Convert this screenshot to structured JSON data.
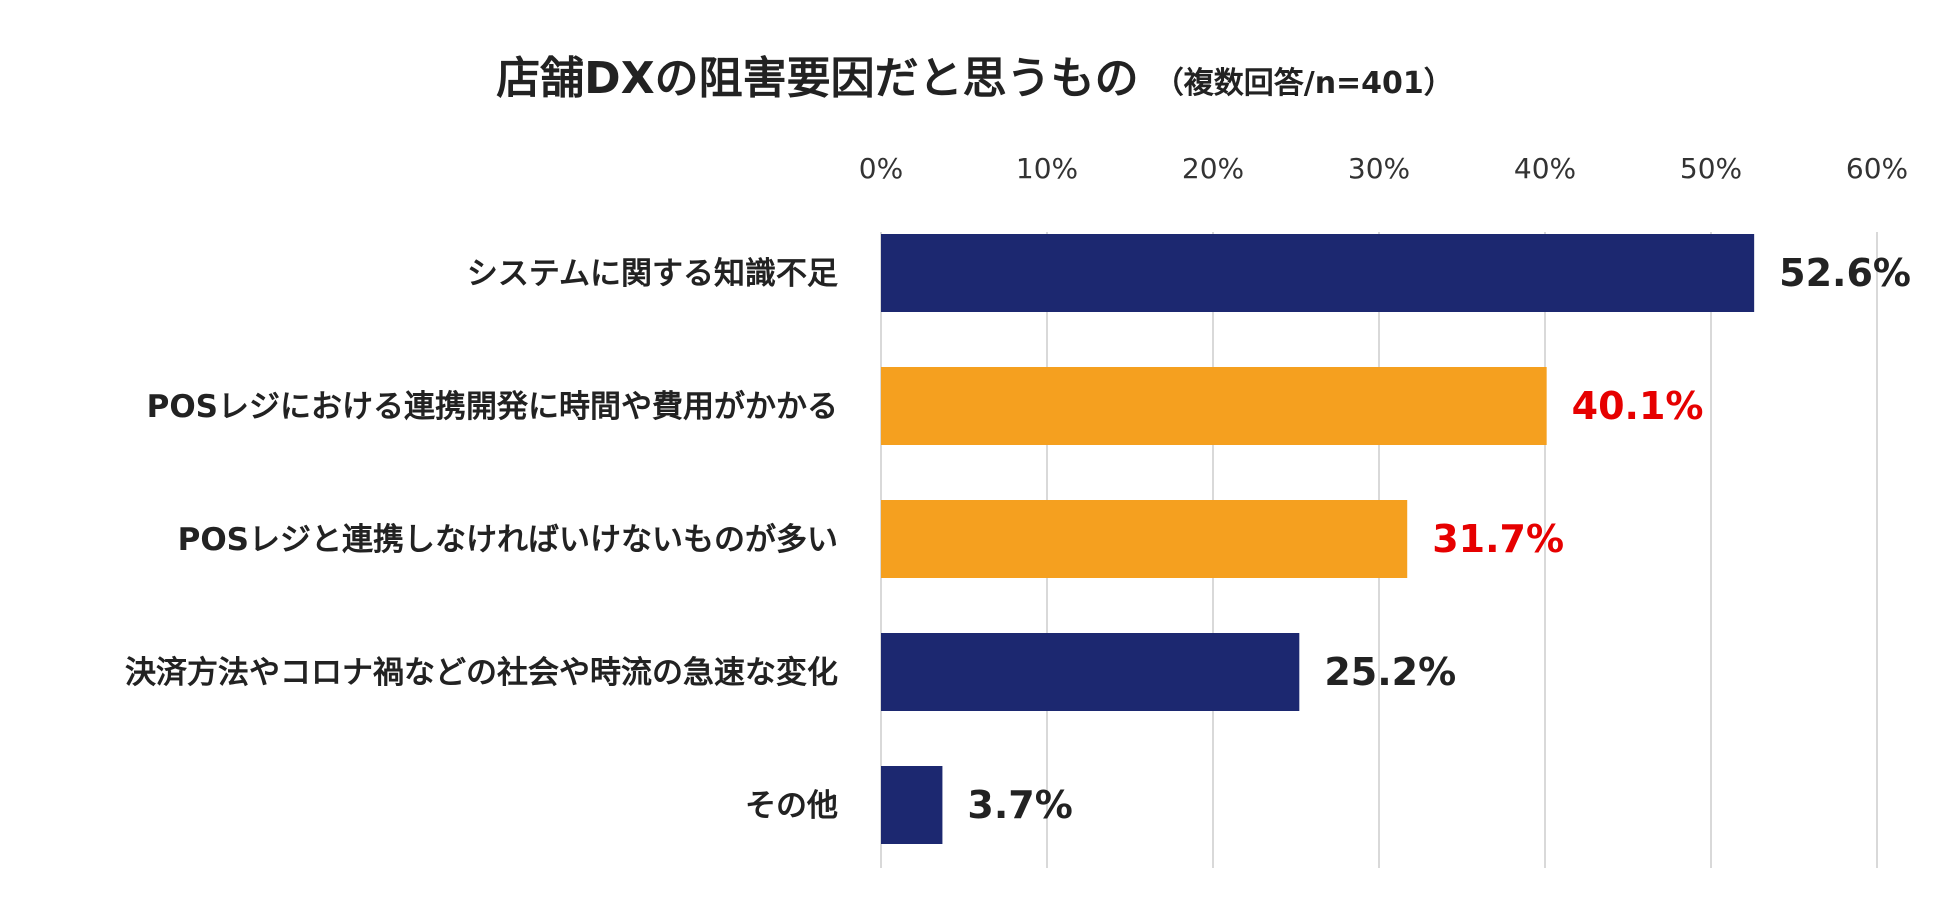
{
  "chart_data": {
    "type": "bar",
    "orientation": "horizontal",
    "title": "店舗DXの阻害要因だと思うもの",
    "subtitle": "（複数回答/n=401）",
    "categories": [
      "システムに関する知識不足",
      "POSレジにおける連携開発に時間や費用がかかる",
      "POSレジと連携しなければいけないものが多い",
      "決済方法やコロナ禍などの社会や時流の急速な変化",
      "その他"
    ],
    "values": [
      52.6,
      40.1,
      31.7,
      25.2,
      3.7
    ],
    "value_labels": [
      "52.6%",
      "40.1%",
      "31.7%",
      "25.2%",
      "3.7%"
    ],
    "highlight": [
      false,
      true,
      true,
      false,
      false
    ],
    "xlim": [
      0,
      60
    ],
    "xticks": [
      0,
      10,
      20,
      30,
      40,
      50,
      60
    ],
    "xtick_labels": [
      "0%",
      "10%",
      "20%",
      "30%",
      "40%",
      "50%",
      "60%"
    ],
    "axis_position": "top",
    "grid": true,
    "colors": {
      "bar_default": "#1c2870",
      "bar_highlight": "#f5a01f",
      "label_default": "#222222",
      "label_highlight": "#e60000",
      "grid": "#d9d9d9"
    }
  }
}
